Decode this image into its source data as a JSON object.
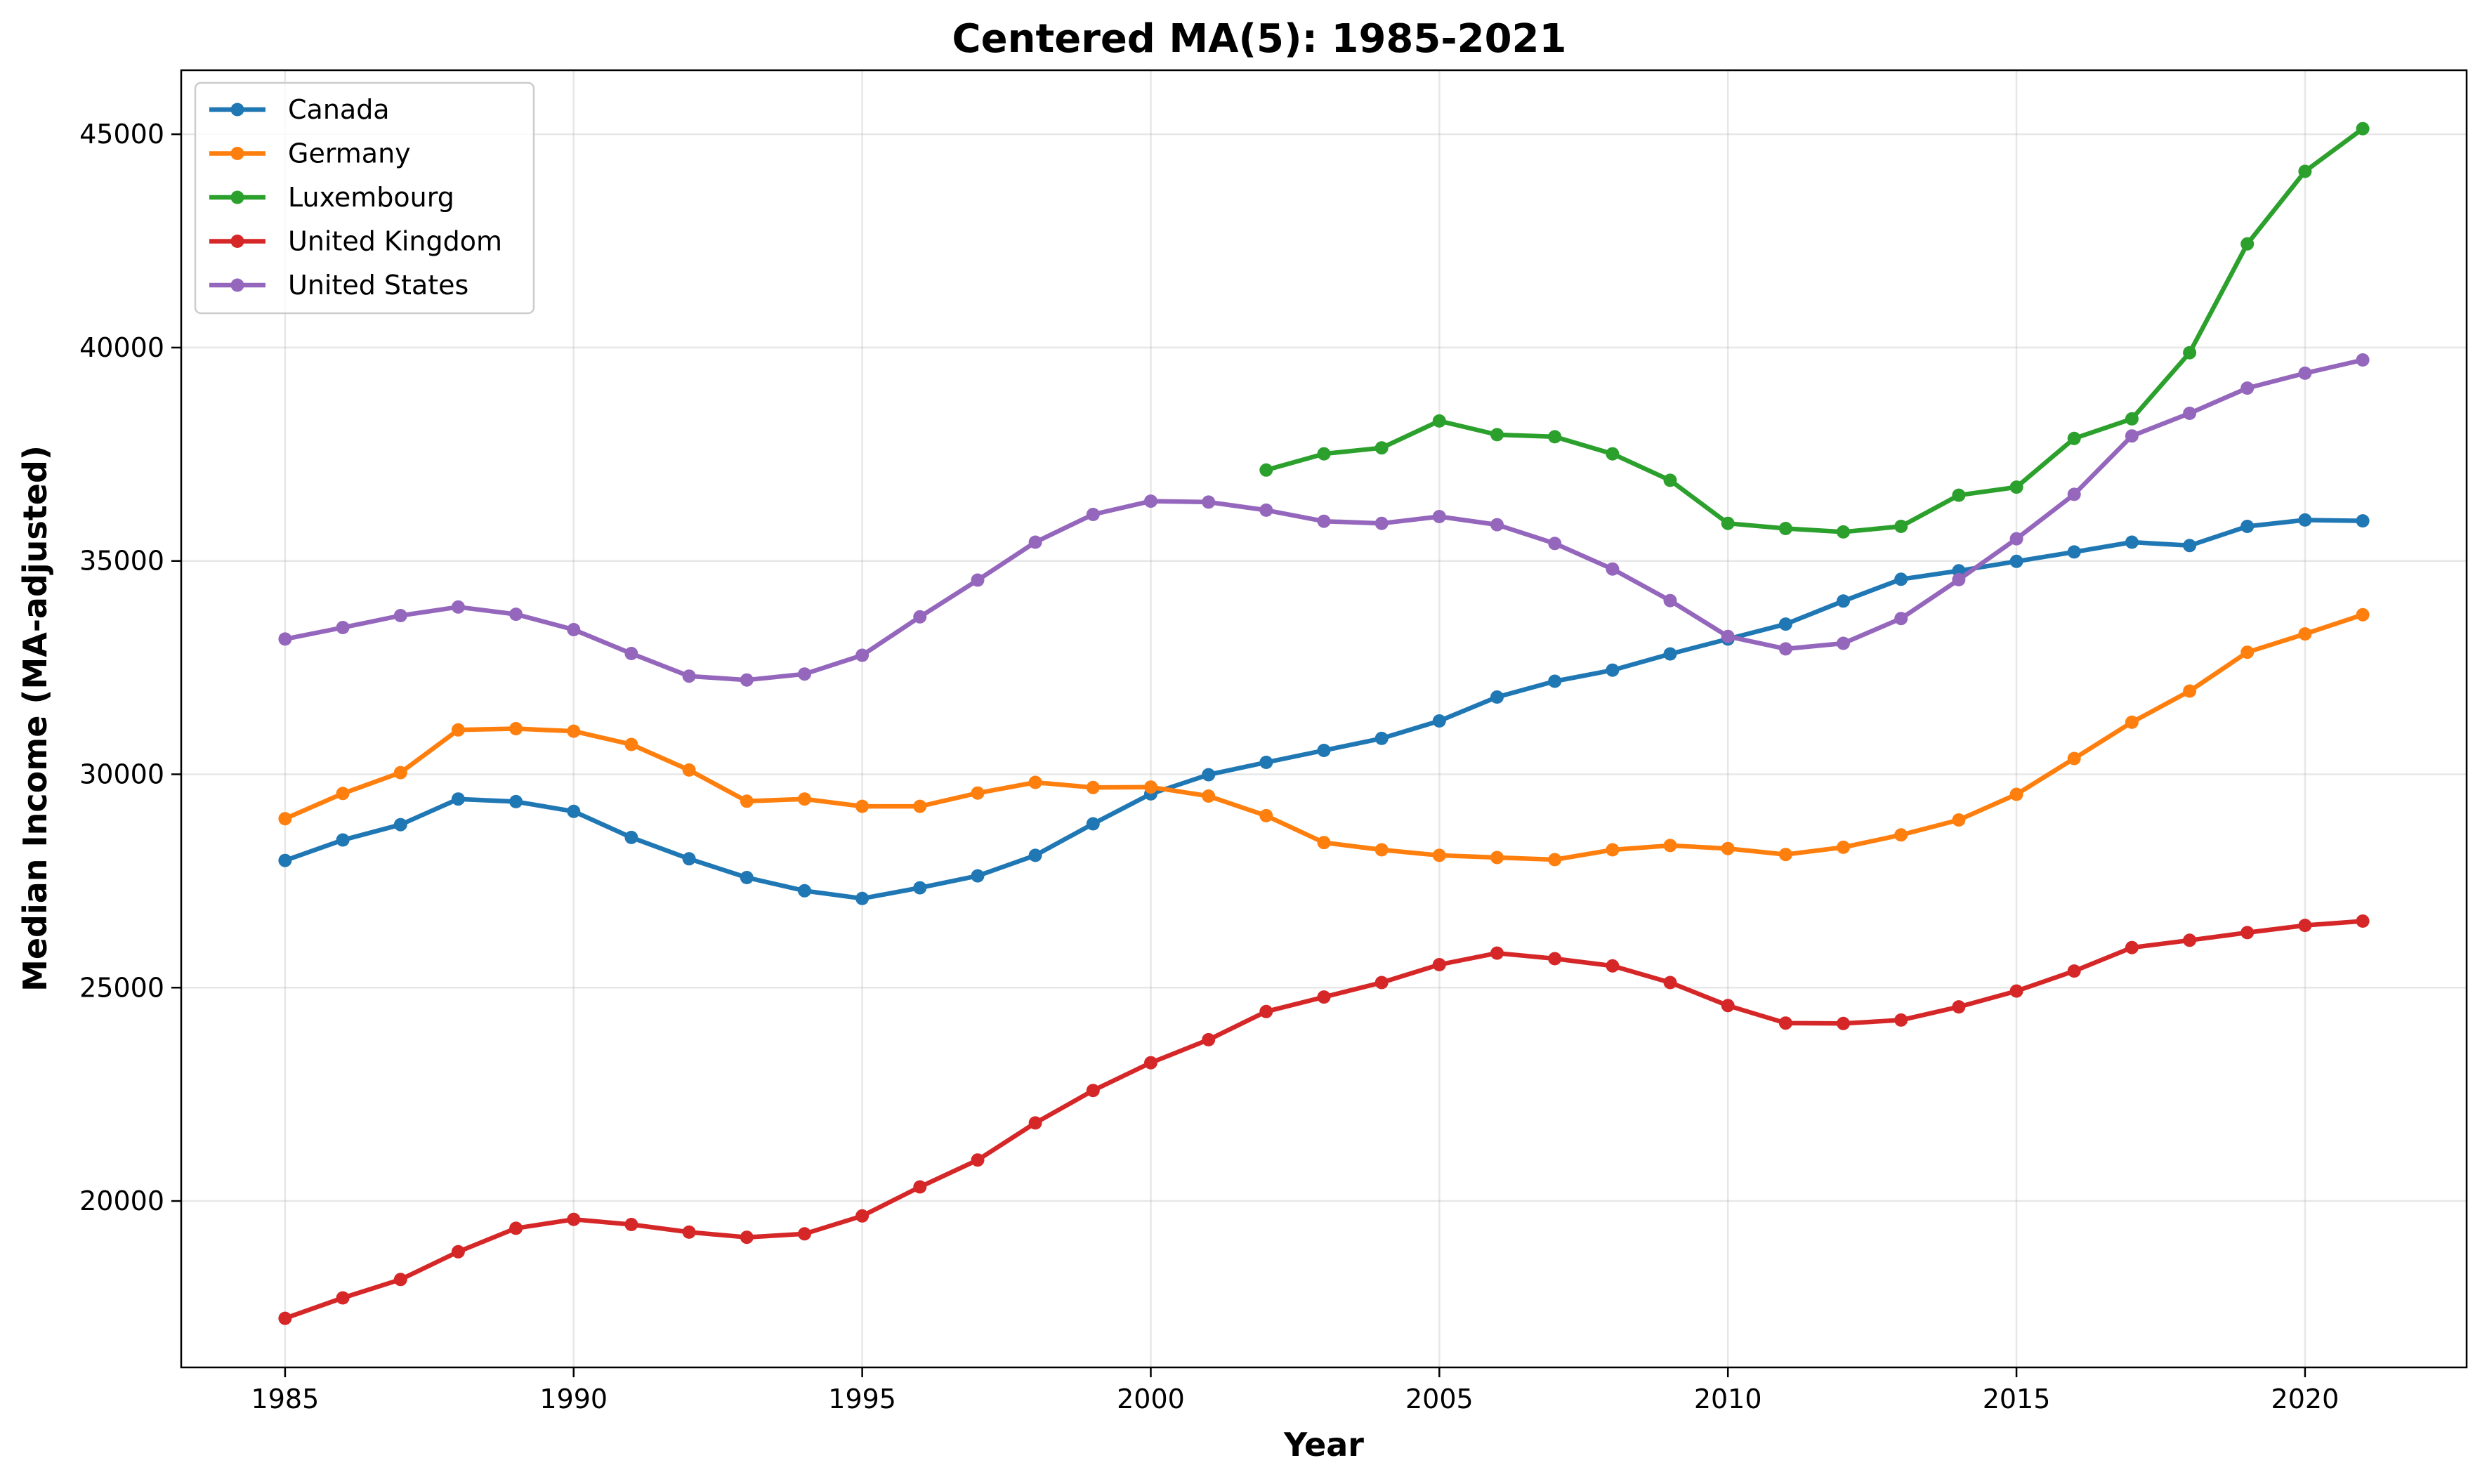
{
  "chart_data": {
    "type": "line",
    "title": "Centered MA(5): 1985-2021",
    "xlabel": "Year",
    "ylabel": "Median Income (MA-adjusted)",
    "xlim": [
      1983.2,
      2022.8
    ],
    "ylim": [
      16100,
      46500
    ],
    "xticks": [
      1985,
      1990,
      1995,
      2000,
      2005,
      2010,
      2015,
      2020
    ],
    "yticks": [
      20000,
      25000,
      30000,
      35000,
      40000,
      45000
    ],
    "grid": true,
    "legend_position": "upper-left",
    "x": [
      1985,
      1986,
      1987,
      1988,
      1989,
      1990,
      1991,
      1992,
      1993,
      1994,
      1995,
      1996,
      1997,
      1998,
      1999,
      2000,
      2001,
      2002,
      2003,
      2004,
      2005,
      2006,
      2007,
      2008,
      2009,
      2010,
      2011,
      2012,
      2013,
      2014,
      2015,
      2016,
      2017,
      2018,
      2019,
      2020,
      2021
    ],
    "series": [
      {
        "name": "Canada",
        "color": "#1f77b4",
        "values": [
          27980,
          28460,
          28820,
          29420,
          29360,
          29130,
          28520,
          28020,
          27580,
          27270,
          27090,
          27340,
          27620,
          28100,
          28840,
          29540,
          29990,
          30280,
          30560,
          30840,
          31250,
          31810,
          32180,
          32440,
          32820,
          33170,
          33520,
          34060,
          34570,
          34770,
          34990,
          35210,
          35440,
          35360,
          35810,
          35960,
          35940
        ]
      },
      {
        "name": "Germany",
        "color": "#ff7f0e",
        "values": [
          28960,
          29550,
          30040,
          31040,
          31070,
          31010,
          30700,
          30100,
          29370,
          29420,
          29250,
          29250,
          29560,
          29810,
          29690,
          29700,
          29490,
          29030,
          28400,
          28230,
          28100,
          28050,
          28000,
          28230,
          28330,
          28260,
          28120,
          28290,
          28580,
          28930,
          29530,
          30370,
          31220,
          31950,
          32860,
          33290,
          33740
        ]
      },
      {
        "name": "Luxembourg",
        "color": "#2ca02c",
        "values": [
          null,
          null,
          null,
          null,
          null,
          null,
          null,
          null,
          null,
          null,
          null,
          null,
          null,
          null,
          null,
          null,
          null,
          37130,
          37510,
          37650,
          38280,
          37960,
          37910,
          37510,
          36890,
          35880,
          35760,
          35680,
          35810,
          36540,
          36730,
          37870,
          38330,
          39880,
          42430,
          44130,
          45130
        ]
      },
      {
        "name": "United Kingdom",
        "color": "#d62728",
        "values": [
          17250,
          17730,
          18160,
          18810,
          19360,
          19570,
          19450,
          19270,
          19150,
          19230,
          19650,
          20330,
          20960,
          21830,
          22590,
          23240,
          23780,
          24440,
          24780,
          25120,
          25540,
          25810,
          25680,
          25510,
          25120,
          24580,
          24170,
          24160,
          24240,
          24550,
          24920,
          25390,
          25940,
          26110,
          26290,
          26460,
          26560
        ]
      },
      {
        "name": "United States",
        "color": "#9467bd",
        "values": [
          33170,
          33440,
          33720,
          33920,
          33750,
          33390,
          32830,
          32300,
          32210,
          32350,
          32790,
          33690,
          34550,
          35440,
          36090,
          36400,
          36380,
          36190,
          35930,
          35880,
          36040,
          35850,
          35410,
          34810,
          34070,
          33230,
          32940,
          33070,
          33650,
          34560,
          35520,
          36560,
          37930,
          38460,
          39050,
          39400,
          39710
        ]
      }
    ]
  }
}
